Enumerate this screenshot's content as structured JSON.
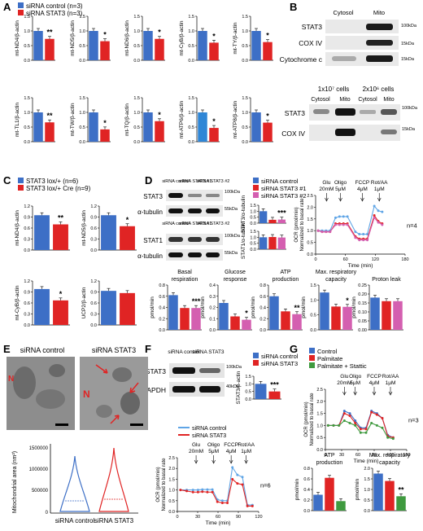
{
  "colors": {
    "blue": "#3d6fc6",
    "red": "#e02424",
    "pink": "#d45fb0",
    "green": "#3f9a3f",
    "lightblue": "#5fa5e6",
    "darkred": "#c01818"
  },
  "panels": {
    "a": "A",
    "b": "B",
    "c": "C",
    "d": "D",
    "e": "E",
    "f": "F",
    "g": "G"
  },
  "legends": {
    "a": [
      "siRNA control (n=3)",
      "siRNA STAT3 (n=3)"
    ],
    "c": [
      "STAT3 lox/+ (n=6)",
      "STAT3 lox/+ Cre (n=9)"
    ],
    "d": [
      "siRNA control",
      "siRNA STAT3 #1",
      "siRNA STAT3 #2"
    ],
    "f": [
      "siRNA control",
      "siRNA STAT3"
    ],
    "fline": [
      "siRNA control",
      "siRNA STAT3"
    ],
    "g": [
      "Control",
      "Palmitate",
      "Palmitate + Stattic"
    ]
  },
  "sig": {
    "two": "**",
    "one": "*",
    "three": "***"
  },
  "blots": {
    "b_top": {
      "cols": [
        "Cytosol",
        "Mito"
      ],
      "rows": [
        "STAT3",
        "COX IV",
        "Cytochrome c"
      ],
      "kda": [
        "100kDa",
        "15kDa",
        "15kDa"
      ]
    },
    "b_bot": {
      "groups": [
        "1x10⁷ cells",
        "2x10⁶ cells"
      ],
      "cols": [
        "Cytosol",
        "Mito",
        "Cytosol",
        "Mito"
      ],
      "rows": [
        "STAT3",
        "COX IV"
      ],
      "kda": [
        "100kDa",
        "15kDa"
      ]
    },
    "d1": {
      "cols": [
        "siRNA control",
        "siRNA STAT3 #1",
        "siRNA STAT3 #2"
      ],
      "rows": [
        "STAT3",
        "α-tubulin"
      ],
      "kda": [
        "100kDa",
        "55kDa"
      ]
    },
    "d2": {
      "cols": [
        "siRNA control",
        "siRNA STAT3 #1",
        "siRNA STAT3 #2"
      ],
      "rows": [
        "STAT1",
        "α-tubulin"
      ],
      "kda": [
        "100kDa",
        "55kDa"
      ]
    },
    "f": {
      "cols": [
        "siRNA control",
        "siRNA STAT3"
      ],
      "rows": [
        "STAT3",
        "GAPDH"
      ],
      "kda": [
        "100kDa",
        "40kDa"
      ]
    }
  },
  "e": {
    "titles": [
      "siRNA control",
      "siRNA STAT3"
    ],
    "ylabel": "Mitochondrial area (nm²)",
    "yticks": [
      "1500000",
      "1000000",
      "500000",
      "0"
    ],
    "xlabels": [
      "siRNA control",
      "siRNA STAT3"
    ],
    "n_label": "N"
  },
  "ocr": {
    "d": {
      "ylabel": "OCR (pmol/min)",
      "ylabel2": "Normalized to basal rate",
      "xlabel": "Time (min)",
      "xticks": [
        "0",
        "60",
        "120",
        "180"
      ],
      "yticks": [
        "0.0",
        "0.5",
        "1.0",
        "1.5",
        "2.0",
        "2.5"
      ],
      "n": "n=4",
      "ann": [
        "Glu 20mM",
        "Oligo 5μM",
        "FCCP 4μM",
        "Rot/AA 1μM"
      ]
    },
    "f": {
      "ylabel": "OCR (pmol/min)",
      "ylabel2": "Normalized to basal rate",
      "xlabel": "Time (min)",
      "xticks": [
        "0",
        "30",
        "60",
        "90",
        "120"
      ],
      "yticks": [
        "0.0",
        "0.5",
        "1.0",
        "1.5",
        "2.0",
        "2.5"
      ],
      "n": "n=6",
      "ann": [
        "Glu 20mM",
        "Oligo 5μM",
        "FCCP 4μM",
        "Rot/AA 1μM"
      ]
    },
    "g": {
      "ylabel": "OCR (pmol/min)",
      "ylabel2": "Normalized to basal rate",
      "xlabel": "Time (min)",
      "xticks": [
        "0",
        "30",
        "60",
        "90",
        "120",
        "150"
      ],
      "yticks": [
        "0.0",
        "0.5",
        "1.0",
        "1.5",
        "2.0",
        "2.5"
      ],
      "n": "n=3",
      "ann": [
        "Glu 20mM",
        "Oligo 5μM",
        "FCCP 4μM",
        "Rot/AA 1μM"
      ]
    }
  },
  "chart_data": [
    {
      "panel": "A",
      "type": "bar",
      "ylabel": "mt-ND4/β-actin",
      "categories": [
        "siRNA control",
        "siRNA STAT3"
      ],
      "values": [
        1.0,
        0.73
      ],
      "ylim": [
        0,
        1.5
      ],
      "yticks": [
        "0.0",
        "0.5",
        "1.0",
        "1.5"
      ],
      "sig": "**"
    },
    {
      "panel": "A",
      "type": "bar",
      "ylabel": "mt-ND5/β-actin",
      "categories": [
        "siRNA control",
        "siRNA STAT3"
      ],
      "values": [
        1.0,
        0.65
      ],
      "ylim": [
        0,
        1.5
      ],
      "yticks": [
        "0.0",
        "0.5",
        "1.0",
        "1.5"
      ],
      "sig": "*"
    },
    {
      "panel": "A",
      "type": "bar",
      "ylabel": "mt-ND6/β-actin",
      "categories": [
        "siRNA control",
        "siRNA STAT3"
      ],
      "values": [
        1.0,
        0.73
      ],
      "ylim": [
        0,
        1.5
      ],
      "yticks": [
        "0.0",
        "0.5",
        "1.0",
        "1.5"
      ],
      "sig": "*"
    },
    {
      "panel": "A",
      "type": "bar",
      "ylabel": "mt-CyB/β-actin",
      "categories": [
        "siRNA control",
        "siRNA STAT3"
      ],
      "values": [
        1.0,
        0.6
      ],
      "ylim": [
        0,
        1.5
      ],
      "yticks": [
        "0.0",
        "0.5",
        "1.0",
        "1.5"
      ],
      "sig": "*"
    },
    {
      "panel": "A",
      "type": "bar",
      "ylabel": "mt-TY/β-actin",
      "categories": [
        "siRNA control",
        "siRNA STAT3"
      ],
      "values": [
        1.0,
        0.62
      ],
      "ylim": [
        0,
        1.5
      ],
      "yticks": [
        "0.0",
        "0.5",
        "1.0",
        "1.5"
      ],
      "sig": "*"
    },
    {
      "panel": "A",
      "type": "bar",
      "ylabel": "mt-TL1/β-actin",
      "categories": [
        "siRNA control",
        "siRNA STAT3"
      ],
      "values": [
        1.0,
        0.66
      ],
      "ylim": [
        0,
        1.5
      ],
      "yticks": [
        "0.0",
        "0.5",
        "1.0",
        "1.5"
      ],
      "sig": "**"
    },
    {
      "panel": "A",
      "type": "bar",
      "ylabel": "mt-TW/β-actin",
      "categories": [
        "siRNA control",
        "siRNA STAT3"
      ],
      "values": [
        1.0,
        0.42
      ],
      "ylim": [
        0,
        1.5
      ],
      "yticks": [
        "0.0",
        "0.5",
        "1.0",
        "1.5"
      ],
      "sig": "*"
    },
    {
      "panel": "A",
      "type": "bar",
      "ylabel": "mt-TQ/β-actin",
      "categories": [
        "siRNA control",
        "siRNA STAT3"
      ],
      "values": [
        1.0,
        0.7
      ],
      "ylim": [
        0,
        1.5
      ],
      "yticks": [
        "0.0",
        "0.5",
        "1.0",
        "1.5"
      ],
      "sig": "*"
    },
    {
      "panel": "A",
      "type": "bar",
      "ylabel": "mt-ATP6/β-actin",
      "categories": [
        "siRNA control",
        "siRNA STAT3"
      ],
      "values": [
        1.0,
        0.47
      ],
      "ylim": [
        0,
        1.5
      ],
      "yticks": [
        "0.0",
        "0.5",
        "1.0",
        "1.5"
      ],
      "sig": "*",
      "colors": [
        "#2f86d6",
        "#e02424"
      ]
    },
    {
      "panel": "A",
      "type": "bar",
      "ylabel": "mt-ATP8/β-actin",
      "categories": [
        "siRNA control",
        "siRNA STAT3"
      ],
      "values": [
        1.0,
        0.65
      ],
      "ylim": [
        0,
        1.5
      ],
      "yticks": [
        "0.0",
        "0.5",
        "1.0",
        "1.5"
      ],
      "sig": "*"
    },
    {
      "panel": "C",
      "type": "bar",
      "ylabel": "mt-ND4/β-actin",
      "categories": [
        "STAT3 lox/+",
        "STAT3 lox/+ Cre"
      ],
      "values": [
        0.95,
        0.7
      ],
      "ylim": [
        0,
        1.2
      ],
      "yticks": [
        "0.0",
        "0.3",
        "0.6",
        "0.9",
        "1.2"
      ],
      "sig": "**"
    },
    {
      "panel": "C",
      "type": "bar",
      "ylabel": "mt-ND5/β-actin",
      "categories": [
        "STAT3 lox/+",
        "STAT3 lox/+ Cre"
      ],
      "values": [
        0.95,
        0.65
      ],
      "ylim": [
        0,
        1.2
      ],
      "yticks": [
        "0.0",
        "0.3",
        "0.6",
        "0.9",
        "1.2"
      ],
      "sig": "*"
    },
    {
      "panel": "C",
      "type": "bar",
      "ylabel": "mt-CyB/β-actin",
      "categories": [
        "STAT3 lox/+",
        "STAT3 lox/+ Cre"
      ],
      "values": [
        0.98,
        0.67
      ],
      "ylim": [
        0,
        1.2
      ],
      "yticks": [
        "0.0",
        "0.3",
        "0.6",
        "0.9",
        "1.2"
      ],
      "sig": "*"
    },
    {
      "panel": "C",
      "type": "bar",
      "ylabel": "UCP2/β-actin",
      "categories": [
        "STAT3 lox/+",
        "STAT3 lox/+ Cre"
      ],
      "values": [
        0.93,
        0.87
      ],
      "ylim": [
        0,
        1.2
      ],
      "yticks": [
        "0.0",
        "0.3",
        "0.6",
        "0.9",
        "1.2"
      ],
      "sig": ""
    },
    {
      "panel": "D",
      "type": "bar",
      "ylabel": "STAT3/α-tubulin",
      "categories": [
        "siRNA control",
        "siRNA STAT3 #1",
        "siRNA STAT3 #2"
      ],
      "values": [
        1.0,
        0.28,
        0.3
      ],
      "ylim": [
        0,
        1.5
      ],
      "yticks": [
        "0.0",
        "0.5",
        "1.0",
        "1.5"
      ],
      "sig": "***"
    },
    {
      "panel": "D",
      "type": "bar",
      "ylabel": "STAT1/α-tubulin",
      "categories": [
        "siRNA control",
        "siRNA STAT3 #1",
        "siRNA STAT3 #2"
      ],
      "values": [
        1.0,
        1.02,
        0.98
      ],
      "ylim": [
        0,
        1.5
      ],
      "yticks": [
        "0.0",
        "0.5",
        "1.0",
        "1.5"
      ],
      "sig": ""
    },
    {
      "panel": "D",
      "type": "bar",
      "title": "Basal respiration",
      "ylabel": "pmol/min",
      "categories": [
        "siRNA control",
        "siRNA STAT3 #1",
        "siRNA STAT3 #2"
      ],
      "values": [
        0.62,
        0.39,
        0.39
      ],
      "ylim": [
        0,
        0.8
      ],
      "yticks": [
        "0.0",
        "0.2",
        "0.4",
        "0.6",
        "0.8"
      ],
      "sig": "***"
    },
    {
      "panel": "D",
      "type": "bar",
      "title": "Glucose response",
      "ylabel": "pmol/min",
      "categories": [
        "siRNA control",
        "siRNA STAT3 #1",
        "siRNA STAT3 #2"
      ],
      "values": [
        0.24,
        0.12,
        0.09
      ],
      "ylim": [
        0,
        0.4
      ],
      "yticks": [
        "0.0",
        "0.1",
        "0.2",
        "0.3",
        "0.4"
      ],
      "sig": "*"
    },
    {
      "panel": "D",
      "type": "bar",
      "title": "ATP production",
      "ylabel": "pmol/min",
      "categories": [
        "siRNA control",
        "siRNA STAT3 #1",
        "siRNA STAT3 #2"
      ],
      "values": [
        0.6,
        0.33,
        0.28
      ],
      "ylim": [
        0,
        0.8
      ],
      "yticks": [
        "0.0",
        "0.2",
        "0.4",
        "0.6",
        "0.8"
      ],
      "sig": "**"
    },
    {
      "panel": "D",
      "type": "bar",
      "title": "Max. respiratory capacity",
      "ylabel": "pmol/min",
      "categories": [
        "siRNA control",
        "siRNA STAT3 #1",
        "siRNA STAT3 #2"
      ],
      "values": [
        1.25,
        0.78,
        0.77
      ],
      "ylim": [
        0,
        1.5
      ],
      "yticks": [
        "0.0",
        "0.5",
        "1.0",
        "1.5"
      ],
      "sig": "*"
    },
    {
      "panel": "D",
      "type": "bar",
      "title": "Proton leak",
      "ylabel": "pmol/min",
      "categories": [
        "siRNA control",
        "siRNA STAT3 #1",
        "siRNA STAT3 #2"
      ],
      "values": [
        0.18,
        0.16,
        0.16
      ],
      "ylim": [
        0,
        0.25
      ],
      "yticks": [
        "0.00",
        "0.05",
        "0.10",
        "0.15",
        "0.20",
        "0.25"
      ],
      "sig": ""
    },
    {
      "panel": "F",
      "type": "bar",
      "ylabel": "STAT3/β-actin",
      "categories": [
        "siRNA control",
        "siRNA STAT3"
      ],
      "values": [
        1.0,
        0.5
      ],
      "ylim": [
        0,
        1.5
      ],
      "yticks": [
        "0.0",
        "0.5",
        "1.0",
        "1.5"
      ],
      "sig": "***"
    },
    {
      "panel": "G",
      "type": "bar",
      "title": "ATP production",
      "ylabel": "pmol/min",
      "categories": [
        "Control",
        "Palmitate",
        "Palmitate + Stattic"
      ],
      "values": [
        0.3,
        0.62,
        0.18
      ],
      "ylim": [
        0,
        0.8
      ],
      "yticks": [
        "0.0",
        "0.2",
        "0.4",
        "0.6",
        "0.8"
      ],
      "sig": ""
    },
    {
      "panel": "G",
      "type": "bar",
      "title": "Max. respiratory capacity",
      "ylabel": "pmol/min",
      "categories": [
        "Control",
        "Palmitate",
        "Palmitate + Stattic"
      ],
      "values": [
        1.75,
        1.4,
        0.68
      ],
      "ylim": [
        0,
        2.0
      ],
      "yticks": [
        "0.0",
        "0.5",
        "1.0",
        "1.5",
        "2.0"
      ],
      "sig": "**"
    },
    {
      "panel": "D",
      "type": "line",
      "ylabel": "OCR (pmol/min) Normalized to basal rate",
      "xlabel": "Time (min)",
      "xlim": [
        0,
        180
      ],
      "ylim": [
        0,
        2.5
      ],
      "series": [
        {
          "name": "siRNA control",
          "x": [
            5,
            13,
            21,
            29,
            40,
            48,
            56,
            64,
            80,
            88,
            96,
            104,
            118,
            126,
            134
          ],
          "values": [
            1.0,
            1.0,
            1.0,
            1.0,
            1.55,
            1.6,
            1.6,
            1.6,
            0.95,
            0.85,
            0.85,
            0.85,
            2.05,
            1.85,
            1.8
          ]
        },
        {
          "name": "siRNA STAT3 #1",
          "x": [
            5,
            13,
            21,
            29,
            40,
            48,
            56,
            64,
            80,
            88,
            96,
            104,
            118,
            126,
            134
          ],
          "values": [
            1.0,
            0.95,
            0.95,
            0.95,
            1.3,
            1.3,
            1.3,
            1.3,
            0.75,
            0.65,
            0.65,
            0.65,
            1.65,
            1.4,
            1.3
          ]
        },
        {
          "name": "siRNA STAT3 #2",
          "x": [
            5,
            13,
            21,
            29,
            40,
            48,
            56,
            64,
            80,
            88,
            96,
            104,
            118,
            126,
            134
          ],
          "values": [
            1.0,
            0.95,
            0.95,
            0.95,
            1.25,
            1.25,
            1.25,
            1.25,
            0.7,
            0.6,
            0.6,
            0.6,
            1.55,
            1.35,
            1.25
          ]
        }
      ]
    },
    {
      "panel": "F",
      "type": "line",
      "ylabel": "OCR (pmol/min) Normalized to basal rate",
      "xlabel": "Time (min)",
      "xlim": [
        0,
        130
      ],
      "ylim": [
        0,
        2.5
      ],
      "series": [
        {
          "name": "siRNA control",
          "x": [
            5,
            15,
            25,
            33,
            40,
            48,
            56,
            64,
            72,
            80,
            88,
            96,
            104,
            112,
            120
          ],
          "values": [
            1.0,
            1.0,
            1.0,
            1.0,
            1.02,
            1.02,
            1.02,
            0.55,
            0.5,
            0.5,
            2.05,
            1.7,
            1.6,
            0.3,
            0.3
          ]
        },
        {
          "name": "siRNA STAT3",
          "x": [
            5,
            15,
            25,
            33,
            40,
            48,
            56,
            64,
            72,
            80,
            88,
            96,
            104,
            112,
            120
          ],
          "values": [
            1.0,
            0.95,
            0.9,
            0.9,
            0.92,
            0.9,
            0.9,
            0.45,
            0.4,
            0.4,
            1.5,
            1.3,
            1.25,
            0.25,
            0.25
          ]
        }
      ]
    },
    {
      "panel": "G",
      "type": "line",
      "ylabel": "OCR (pmol/min) Normalized to basal rate",
      "xlabel": "Time (min)",
      "xlim": [
        0,
        150
      ],
      "ylim": [
        0,
        2.5
      ],
      "series": [
        {
          "name": "Control",
          "x": [
            5,
            15,
            25,
            35,
            45,
            55,
            65,
            75,
            85,
            95,
            105,
            115,
            125
          ],
          "values": [
            1.0,
            1.0,
            1.0,
            1.6,
            1.5,
            1.2,
            0.9,
            0.9,
            1.6,
            1.5,
            1.3,
            0.6,
            0.5
          ]
        },
        {
          "name": "Palmitate",
          "x": [
            5,
            15,
            25,
            35,
            45,
            55,
            65,
            75,
            85,
            95,
            105,
            115,
            125
          ],
          "values": [
            1.0,
            1.0,
            1.0,
            1.5,
            1.4,
            1.1,
            0.85,
            0.85,
            1.55,
            1.45,
            1.3,
            0.55,
            0.5
          ]
        },
        {
          "name": "Palmitate + Stattic",
          "x": [
            5,
            15,
            25,
            35,
            45,
            55,
            65,
            75,
            85,
            95,
            105,
            115,
            125
          ],
          "values": [
            1.0,
            1.0,
            1.0,
            1.2,
            1.1,
            1.0,
            0.7,
            0.7,
            1.1,
            1.0,
            0.9,
            0.5,
            0.45
          ]
        }
      ]
    }
  ]
}
